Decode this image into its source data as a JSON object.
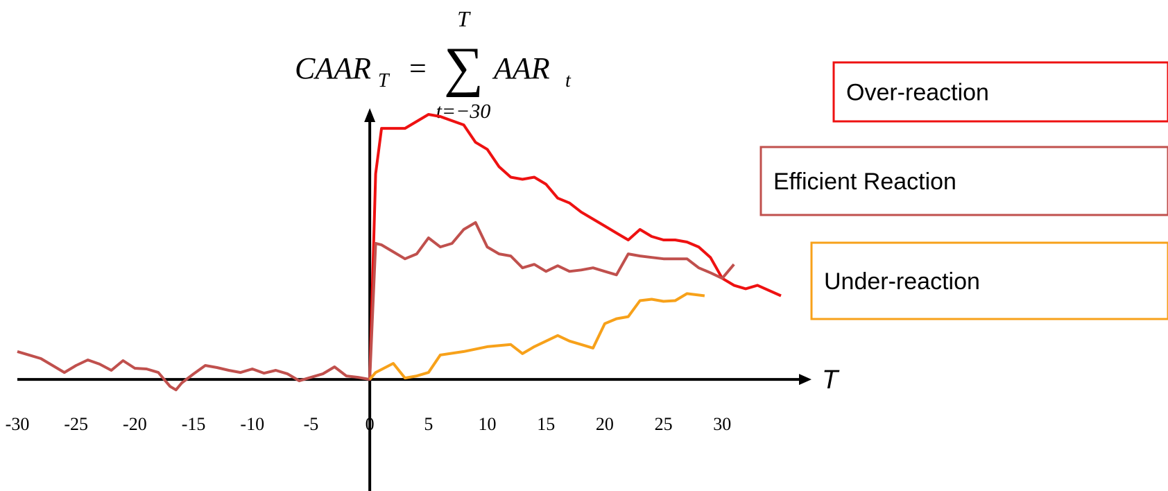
{
  "chart_data": {
    "type": "line",
    "formula": {
      "lhs": "CAAR",
      "lhs_sub": "T",
      "equals": "=",
      "sum_top": "T",
      "sum_bottom": "t=−30",
      "term": "AAR",
      "term_sub": "t"
    },
    "x_label": "T",
    "xlim": [
      -30,
      37.6
    ],
    "ylim": [
      -16,
      38.5
    ],
    "xticks": [
      -30,
      -25,
      -20,
      -15,
      -10,
      -5,
      0,
      5,
      10,
      15,
      20,
      25,
      30
    ],
    "series": [
      {
        "name": "Over-reaction",
        "color": "#ee1111",
        "x": [
          0,
          0.5,
          1,
          3,
          5,
          6,
          8,
          9,
          10,
          11,
          12,
          13,
          14,
          15,
          16,
          17,
          18,
          19,
          20,
          21,
          22,
          23,
          24,
          25,
          26,
          27,
          28,
          29,
          30,
          31,
          32,
          33,
          35
        ],
        "values": [
          0,
          29.5,
          36,
          36,
          38,
          37.7,
          36.5,
          34,
          33,
          30.5,
          29,
          28.7,
          29,
          28,
          26,
          25.3,
          24,
          23,
          22,
          21,
          20,
          21.5,
          20.5,
          20,
          20,
          19.7,
          19,
          17.5,
          14.5,
          13.5,
          13,
          13.5,
          12
        ]
      },
      {
        "name": "Efficient Reaction",
        "color": "#c0504d",
        "x": [
          -30,
          -29,
          -28,
          -27,
          -26,
          -25,
          -24,
          -23,
          -22,
          -21,
          -20,
          -19,
          -18,
          -17,
          -16.5,
          -16,
          -15,
          -14,
          -13,
          -12,
          -11,
          -10,
          -9,
          -8,
          -7,
          -6,
          -5,
          -4,
          -3,
          -2,
          -1,
          0,
          0.5,
          1,
          2,
          3,
          4,
          5,
          6,
          7,
          8,
          9,
          10,
          11,
          12,
          13,
          14,
          15,
          16,
          17,
          18,
          19,
          20,
          21,
          22,
          23,
          24,
          25,
          26,
          27,
          28,
          29,
          30,
          31
        ],
        "values": [
          4,
          3.5,
          3,
          2,
          1,
          2,
          2.8,
          2.2,
          1.3,
          2.7,
          1.6,
          1.5,
          1,
          -1,
          -1.5,
          -0.5,
          0.8,
          2,
          1.7,
          1.3,
          1,
          1.5,
          0.9,
          1.3,
          0.8,
          -0.2,
          0.3,
          0.8,
          1.8,
          0.5,
          0.3,
          0,
          19.5,
          19.3,
          18.3,
          17.3,
          18,
          20.3,
          19,
          19.5,
          21.5,
          22.5,
          19,
          18,
          17.7,
          16,
          16.5,
          15.5,
          16.3,
          15.5,
          15.7,
          16,
          15.5,
          15,
          18,
          17.7,
          17.5,
          17.3,
          17.3,
          17.3,
          16,
          15.3,
          14.5,
          16.5
        ]
      },
      {
        "name": "Under-reaction",
        "color": "#f7a11a",
        "x": [
          0,
          0.5,
          2,
          3,
          4,
          5,
          6,
          8,
          10,
          12,
          13,
          14,
          16,
          17,
          18,
          19,
          20,
          21,
          22,
          23,
          24,
          25,
          26,
          27,
          28.5
        ],
        "values": [
          0,
          1,
          2.3,
          0.2,
          0.5,
          1,
          3.5,
          4,
          4.7,
          5,
          3.7,
          4.7,
          6.3,
          5.5,
          5,
          4.5,
          8,
          8.7,
          9,
          11.3,
          11.5,
          11.2,
          11.3,
          12.3,
          12
        ]
      }
    ]
  }
}
